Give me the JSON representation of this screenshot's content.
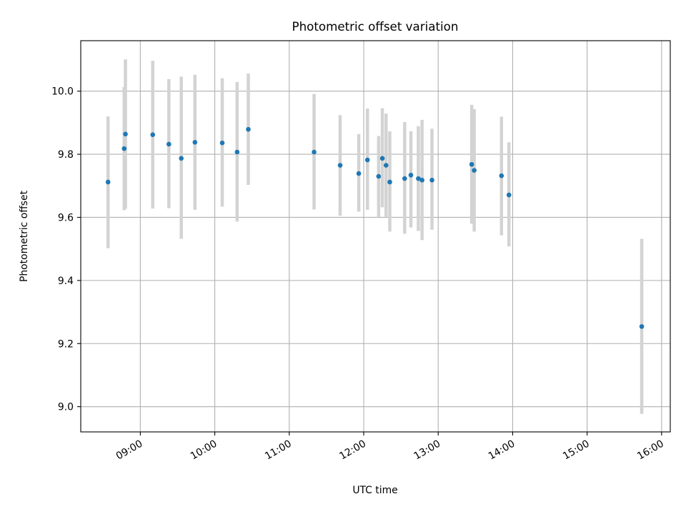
{
  "chart_data": {
    "type": "scatter",
    "title": "Photometric offset variation",
    "xlabel": "UTC time",
    "ylabel": "Photometric offset",
    "xlim": [
      "08:12",
      "16:07"
    ],
    "ylim": [
      8.92,
      10.16
    ],
    "x_ticks": [
      "09:00",
      "10:00",
      "11:00",
      "12:00",
      "13:00",
      "14:00",
      "15:00",
      "16:00"
    ],
    "y_ticks": [
      9.0,
      9.2,
      9.4,
      9.6,
      9.8,
      10.0
    ],
    "y_tick_labels": [
      "9.0",
      "9.2",
      "9.4",
      "9.6",
      "9.8",
      "10.0"
    ],
    "grid": true,
    "colors": {
      "point": "#1f77b4",
      "errorbar": "#d3d3d3",
      "grid": "#b0b0b0"
    },
    "series": [
      {
        "x": [
          "08:34",
          "08:47",
          "08:48",
          "09:10",
          "09:23",
          "09:33",
          "09:44",
          "10:06",
          "10:18",
          "10:27",
          "11:20",
          "11:41",
          "11:56",
          "12:03",
          "12:12",
          "12:15",
          "12:18",
          "12:21",
          "12:33",
          "12:38",
          "12:44",
          "12:47",
          "12:55",
          "13:27",
          "13:29",
          "13:51",
          "13:57",
          "15:44"
        ],
        "y": [
          9.712,
          9.818,
          9.864,
          9.862,
          9.832,
          9.787,
          9.838,
          9.836,
          9.807,
          9.879,
          9.807,
          9.765,
          9.739,
          9.782,
          9.73,
          9.787,
          9.765,
          9.712,
          9.723,
          9.734,
          9.723,
          9.718,
          9.718,
          9.768,
          9.749,
          9.732,
          9.671,
          9.254
        ],
        "yerr_low": [
          9.502,
          9.623,
          9.627,
          9.628,
          9.629,
          9.532,
          9.624,
          9.634,
          9.587,
          9.703,
          9.625,
          9.605,
          9.618,
          9.624,
          9.602,
          9.632,
          9.602,
          9.555,
          9.548,
          9.568,
          9.557,
          9.528,
          9.561,
          9.58,
          9.555,
          9.543,
          9.508,
          8.977
        ],
        "yerr_high": [
          9.92,
          10.013,
          10.101,
          10.096,
          10.038,
          10.046,
          10.052,
          10.041,
          10.029,
          10.056,
          9.991,
          9.924,
          9.864,
          9.945,
          9.858,
          9.946,
          9.929,
          9.873,
          9.902,
          9.873,
          9.889,
          9.909,
          9.881,
          9.957,
          9.943,
          9.919,
          9.838,
          9.532
        ]
      }
    ]
  }
}
